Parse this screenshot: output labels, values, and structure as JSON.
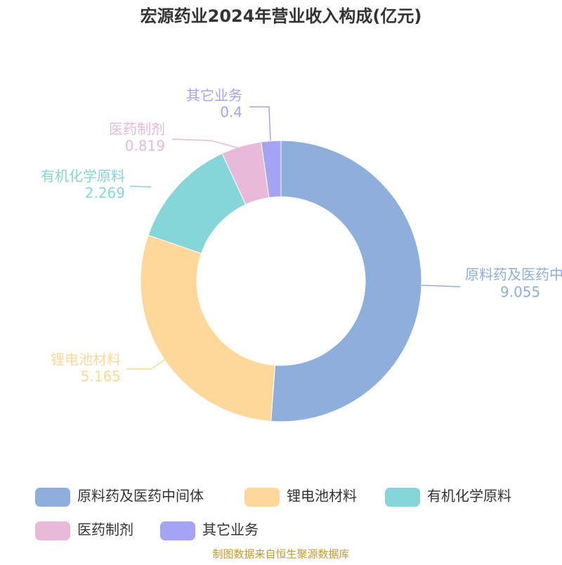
{
  "chart_data": {
    "type": "donut",
    "title": "宏源药业2024年营业收入构成(亿元)",
    "categories": [
      "原料药及医药中间体",
      "锂电池材料",
      "有机化学原料",
      "医药制剂",
      "其它业务"
    ],
    "values": [
      9.055,
      5.165,
      2.269,
      0.819,
      0.4
    ],
    "colors": [
      "#8eaedb",
      "#fdd89a",
      "#86d5d8",
      "#e8b9d9",
      "#a4a3f4"
    ],
    "legend": "bottom",
    "source": "制图数据来自恒生聚源数据库"
  }
}
